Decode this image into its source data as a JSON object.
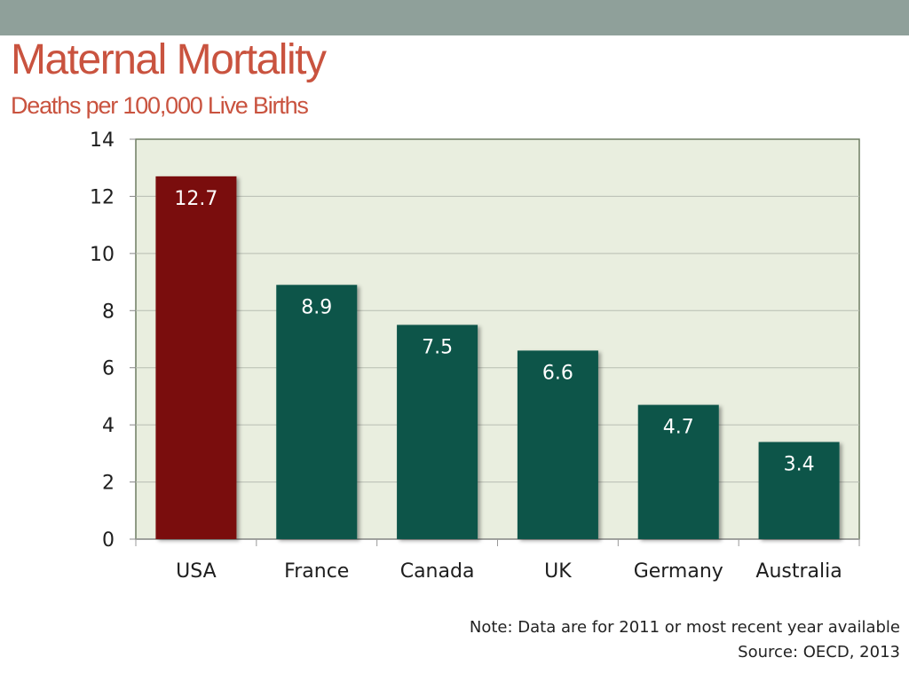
{
  "slide": {
    "title": "Maternal Mortality",
    "subtitle": "Deaths per 100,000 Live Births",
    "note": "Note: Data are for 2011 or most recent year available",
    "source": "Source: OECD, 2013"
  },
  "colors": {
    "top_band": "#8fa09a",
    "title": "#c9533f",
    "plot_background": "#e9eedf",
    "gridline": "#b8bdb2",
    "highlight_bar": "#7a0c0c",
    "default_bar": "#0d5549",
    "bar_label": "#ffffff",
    "axis_text": "#1e1e1e"
  },
  "chart_data": {
    "type": "bar",
    "title": "Maternal Mortality",
    "subtitle": "Deaths per 100,000 Live Births",
    "xlabel": "",
    "ylabel": "",
    "ylim": [
      0,
      14
    ],
    "yticks": [
      0,
      2,
      4,
      6,
      8,
      10,
      12,
      14
    ],
    "grid": true,
    "legend": "none",
    "categories": [
      "USA",
      "France",
      "Canada",
      "UK",
      "Germany",
      "Australia"
    ],
    "values": [
      12.7,
      8.9,
      7.5,
      6.6,
      4.7,
      3.4
    ],
    "data_labels": [
      "12.7",
      "8.9",
      "7.5",
      "6.6",
      "4.7",
      "3.4"
    ],
    "highlight": "USA"
  }
}
